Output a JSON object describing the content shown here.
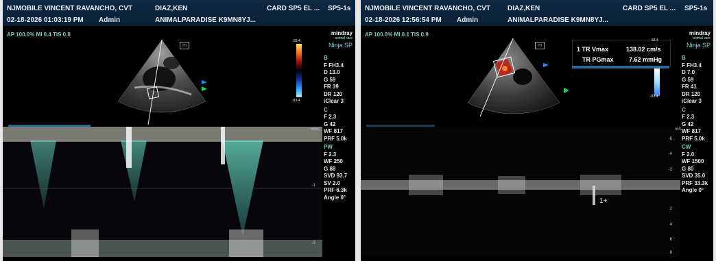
{
  "left": {
    "header": {
      "facility": "NJMOBILE VINCENT RAVANCHO, CVT",
      "patient": "DIAZ,KEN",
      "exam": "CARD SP5 EL ...",
      "probe": "SP5-1s",
      "datetime": "02-18-2026  01:03:19 PM",
      "operator": "Admin",
      "patient_id": "ANIMALPARADISE K9MN8YJ..."
    },
    "acq": "AP 100.0%  MI 0.4  TIS 0.8",
    "brand": {
      "logo": "mindray",
      "sub": "animal care",
      "model": "Ninja SP"
    },
    "colorbar": {
      "top": "83.4",
      "bottom": "-83.4"
    },
    "params": {
      "b_title": "B",
      "b": [
        "F FH3.4",
        "D 13.0",
        "G 59",
        "FR 39",
        "DR 120",
        "iClear 3"
      ],
      "c_title": "C",
      "c": [
        "F 2.3",
        "G 42",
        "WF 817",
        "PRF 5.0k"
      ],
      "pw_title": "PW",
      "pw": [
        "F 2.3",
        "WF 250",
        "G 88",
        "SVD 93.7",
        "SV 2.0",
        "PRF 6.3k",
        "Angle 0°"
      ]
    },
    "scale_unit": "cm/s",
    "scale_ticks": [
      "1",
      "-1",
      "-2"
    ]
  },
  "right": {
    "header": {
      "facility": "NJMOBILE VINCENT RAVANCHO, CVT",
      "patient": "DIAZ,KEN",
      "exam": "CARD SP5 EL ...",
      "probe": "SP5-1s",
      "datetime": "02-18-2026  12:56:54 PM",
      "operator": "Admin",
      "patient_id": "ANIMALPARADISE K9MN8YJ..."
    },
    "acq": "AP 100.0%  MI 0.1  TIS 0.9",
    "brand": {
      "logo": "mindray",
      "sub": "animal care",
      "model": "Ninja SP"
    },
    "colorbar": {
      "top": "83.4",
      "bottom": "-83.4"
    },
    "measurements": [
      {
        "label": "1 TR Vmax",
        "value": "138.02 cm/s"
      },
      {
        "label": "TR PGmax",
        "value": "7.62 mmHg"
      }
    ],
    "params": {
      "b_title": "B",
      "b": [
        "F FH3.4",
        "D 7.0",
        "G 59",
        "FR 41",
        "DR 120",
        "iClear 3"
      ],
      "c_title": "C",
      "c": [
        "F 2.3",
        "G 42",
        "WF 817",
        "PRF 5.0k"
      ],
      "cw_title": "CW",
      "cw": [
        "F 2.0",
        "WF 1500",
        "G 80",
        "SVD 35.0",
        "PRF 33.3k",
        "Angle 0°"
      ]
    },
    "scale_unit": "m/s",
    "scale_ticks": [
      "-6",
      "-4",
      "-2",
      "2",
      "4",
      "6",
      "8"
    ],
    "caliper": "1"
  },
  "colors": {
    "header_bg": "#0f2a45",
    "accent": "#7fd0b0",
    "spectral": "#4fb0a0"
  }
}
